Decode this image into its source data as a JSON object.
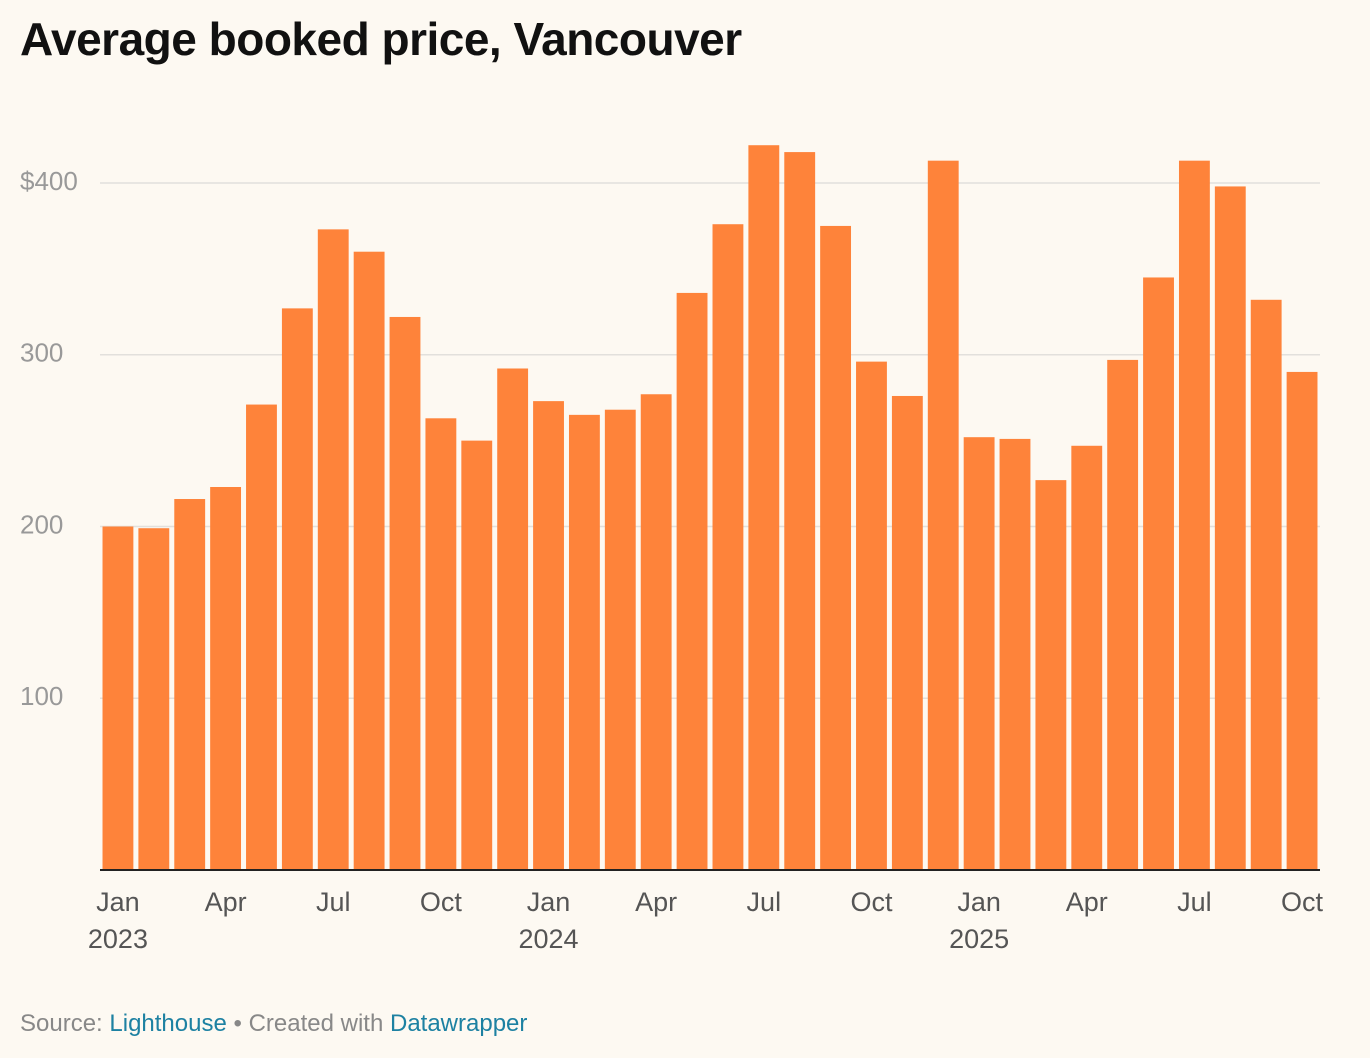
{
  "chart_data": {
    "type": "bar",
    "title": "Average booked price, Vancouver",
    "categories": [
      "Jan\n2023",
      null,
      null,
      "Apr",
      null,
      null,
      "Jul",
      null,
      null,
      "Oct",
      null,
      null,
      "Jan\n2024",
      null,
      null,
      "Apr",
      null,
      null,
      "Jul",
      null,
      null,
      "Oct",
      null,
      null,
      "Jan\n2025",
      null,
      null,
      "Apr",
      null,
      null,
      "Jul",
      null,
      null,
      "Oct"
    ],
    "values": [
      200,
      199,
      216,
      223,
      271,
      327,
      373,
      360,
      322,
      263,
      250,
      292,
      273,
      265,
      268,
      277,
      336,
      376,
      422,
      418,
      375,
      296,
      276,
      413,
      252,
      251,
      227,
      247,
      297,
      345,
      413,
      398,
      332,
      290
    ],
    "color": "#fe833a",
    "ylim": [
      0,
      440
    ],
    "yticks": [
      100,
      200,
      300,
      {
        "value": 400,
        "label": "$400"
      }
    ],
    "grid": true,
    "source_label": "Source:",
    "source": "Lighthouse",
    "separator": "•",
    "credit_label": "Created with",
    "credit": "Datawrapper"
  }
}
